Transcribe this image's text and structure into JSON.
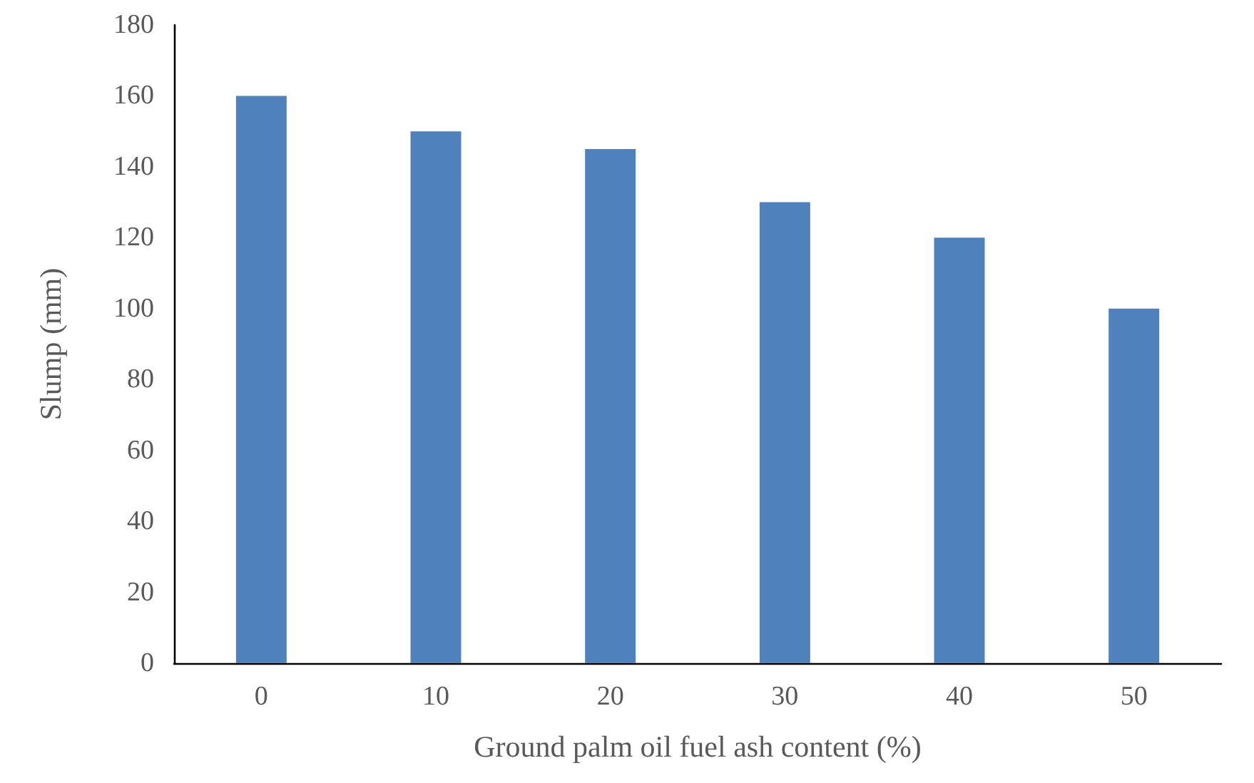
{
  "chart_data": {
    "type": "bar",
    "xlabel": "Ground palm oil fuel ash content (%)",
    "ylabel": "Slump (mm)",
    "categories": [
      "0",
      "10",
      "20",
      "30",
      "40",
      "50"
    ],
    "values": [
      160,
      150,
      145,
      130,
      120,
      100
    ],
    "color": "#4f81bd",
    "ylim": [
      0,
      180
    ],
    "yticks": [
      0,
      20,
      40,
      60,
      80,
      100,
      120,
      140,
      160,
      180
    ],
    "grid": false
  }
}
